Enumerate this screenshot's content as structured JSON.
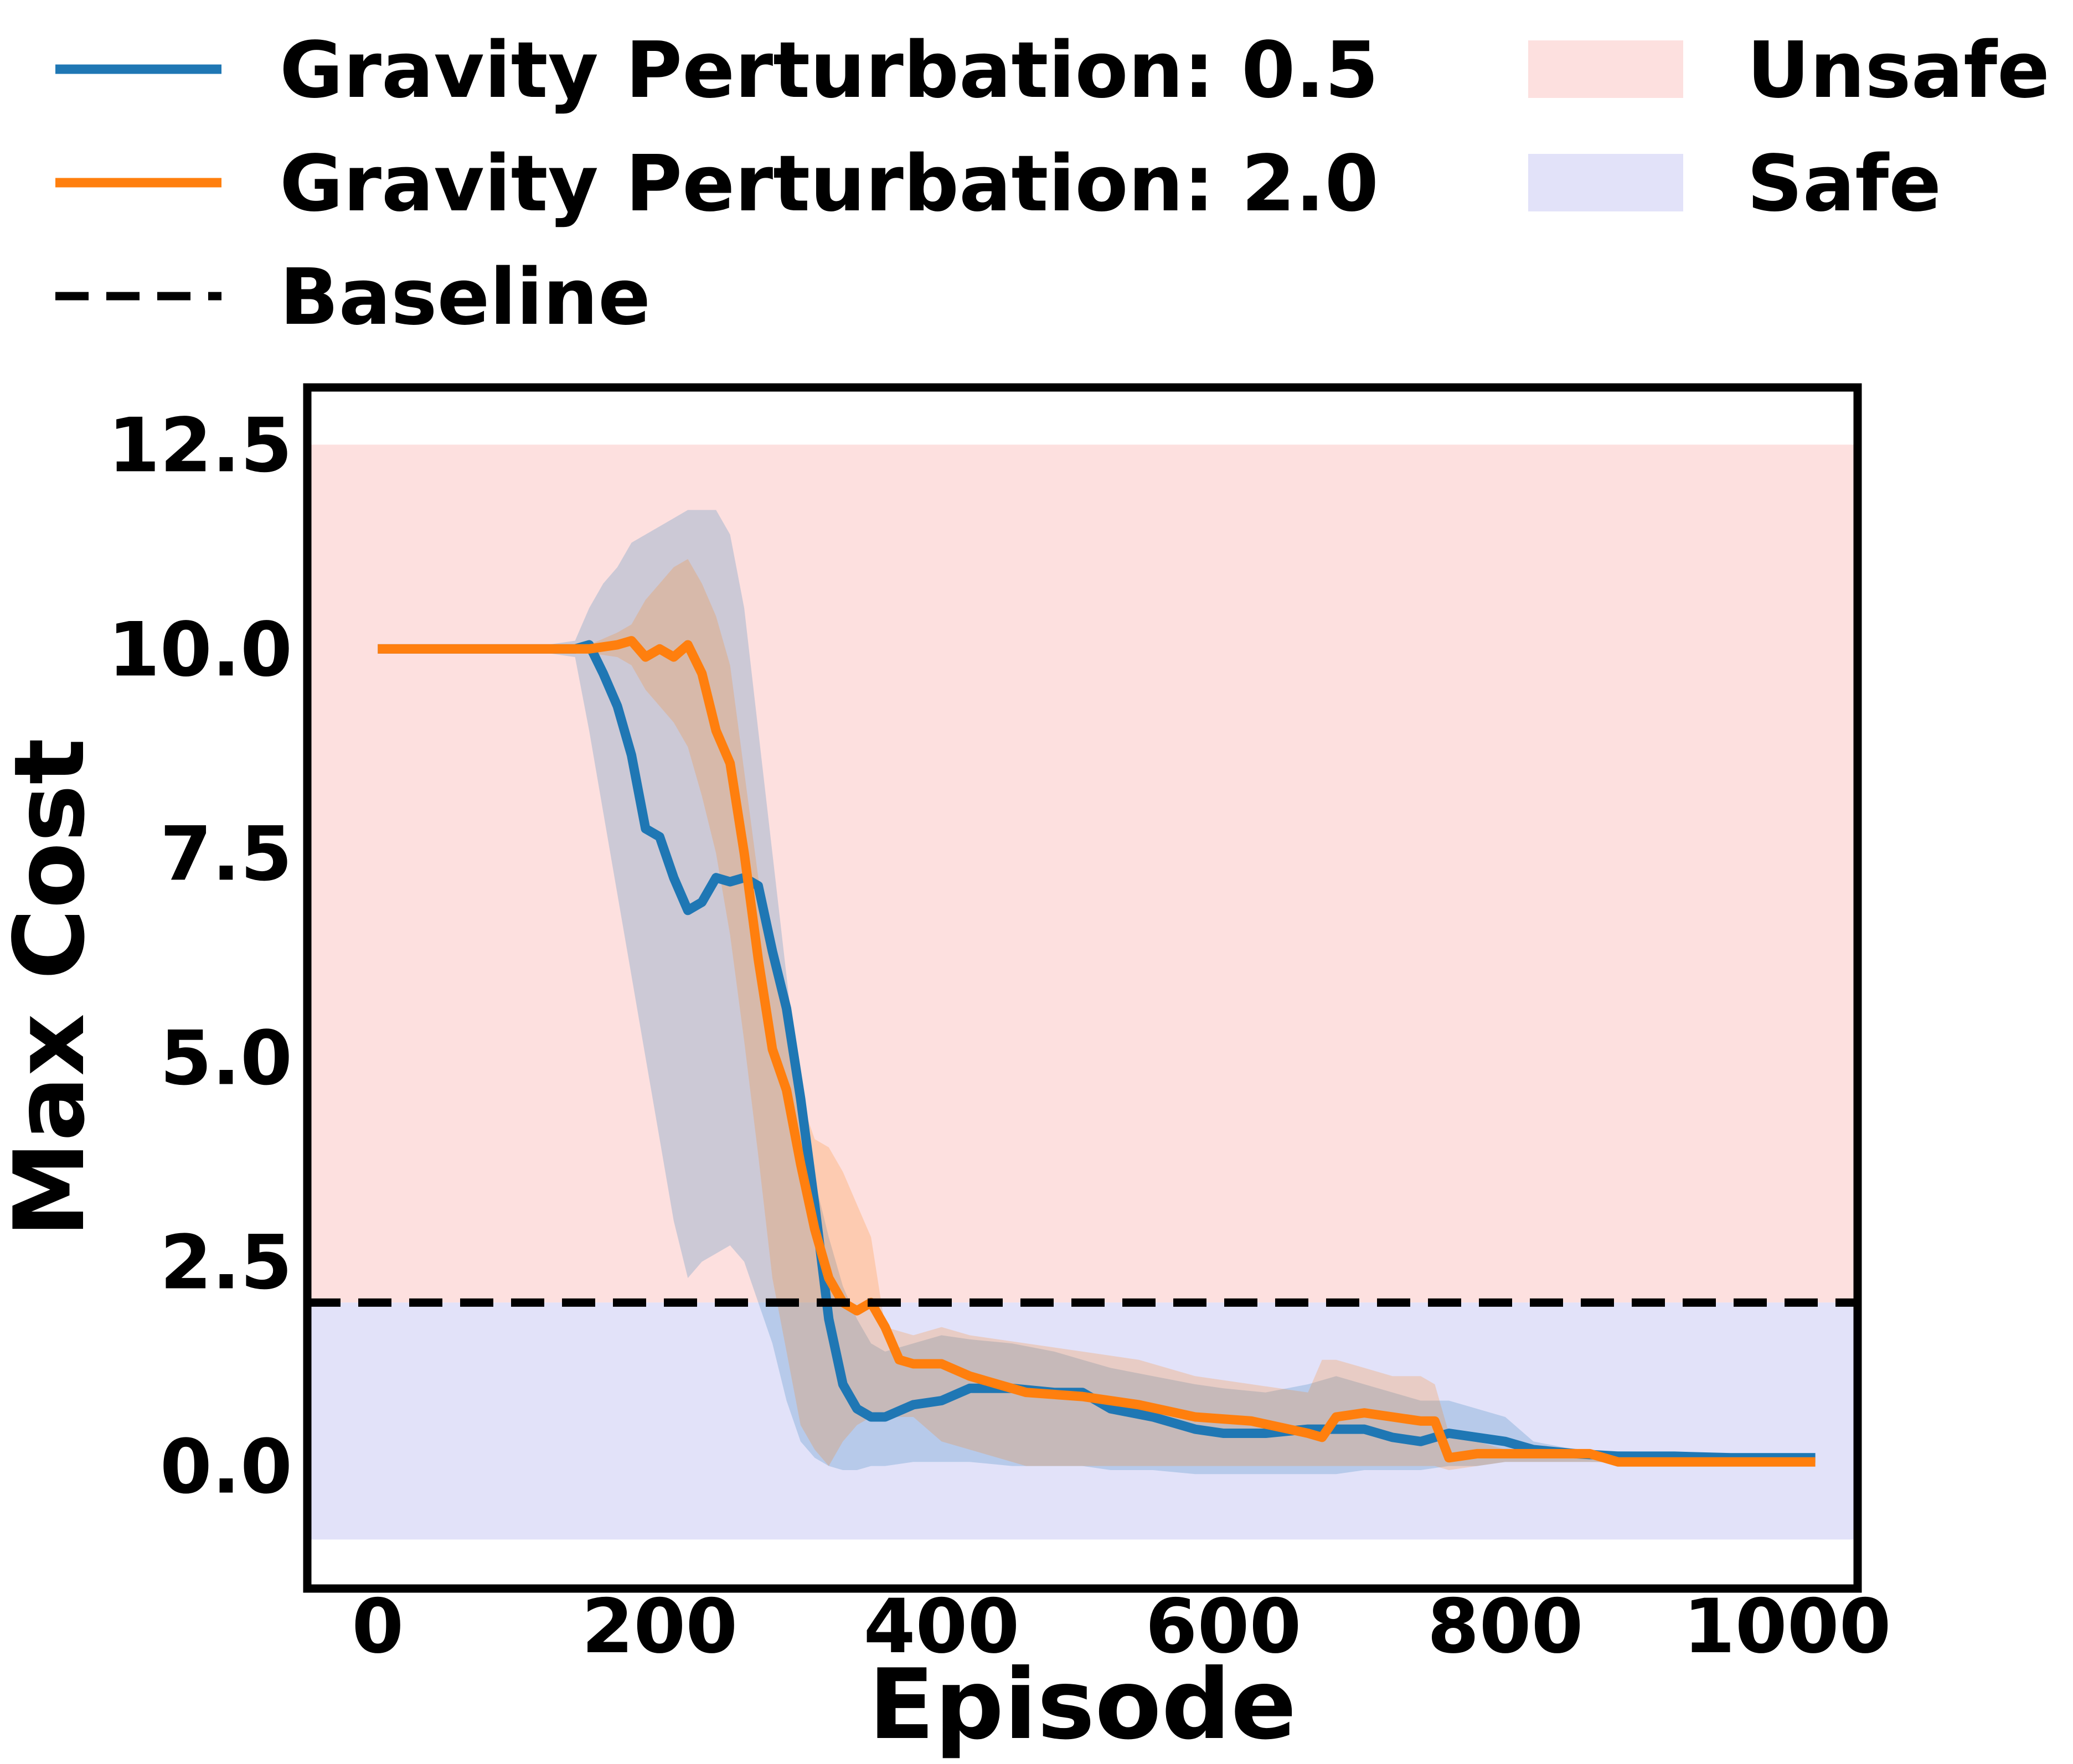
{
  "chart_data": {
    "type": "line",
    "title": "",
    "xlabel": "Episode",
    "ylabel": "Max Cost",
    "xlim": [
      -50,
      1050
    ],
    "ylim": [
      -1.5,
      13.2
    ],
    "xticks": [
      0,
      200,
      400,
      600,
      800,
      1000
    ],
    "xtick_labels": [
      "0",
      "200",
      "400",
      "600",
      "800",
      "1000"
    ],
    "yticks": [
      0.0,
      2.5,
      5.0,
      7.5,
      10.0,
      12.5
    ],
    "ytick_labels": [
      "0.0",
      "2.5",
      "5.0",
      "7.5",
      "10.0",
      "12.5"
    ],
    "grid": false,
    "legend_position": "above plot, two columns",
    "baseline": {
      "name": "Baseline",
      "value": 2.0,
      "color": "#000000",
      "style": "dashed"
    },
    "regions": [
      {
        "name": "Unsafe",
        "y_from": 2.0,
        "y_to": 12.5,
        "color": "#fde0df"
      },
      {
        "name": "Safe",
        "y_from": -0.9,
        "y_to": 2.0,
        "color": "#e2e2f9"
      }
    ],
    "series": [
      {
        "name": "Gravity Perturbation: 0.5",
        "color": "#1f77b4",
        "x": [
          0,
          50,
          100,
          140,
          150,
          160,
          170,
          180,
          190,
          200,
          210,
          220,
          230,
          240,
          250,
          260,
          270,
          280,
          290,
          300,
          310,
          320,
          330,
          340,
          350,
          360,
          380,
          400,
          420,
          450,
          480,
          500,
          520,
          550,
          580,
          600,
          630,
          660,
          680,
          700,
          720,
          740,
          760,
          780,
          800,
          820,
          850,
          880,
          920,
          960,
          1000,
          1020
        ],
        "y": [
          10,
          10,
          10,
          10,
          10.05,
          9.7,
          9.3,
          8.7,
          7.8,
          7.7,
          7.2,
          6.8,
          6.9,
          7.2,
          7.15,
          7.2,
          7.1,
          6.3,
          5.6,
          4.5,
          3.2,
          1.8,
          1.0,
          0.7,
          0.6,
          0.6,
          0.75,
          0.8,
          0.95,
          0.95,
          0.9,
          0.9,
          0.7,
          0.6,
          0.45,
          0.4,
          0.4,
          0.45,
          0.45,
          0.45,
          0.35,
          0.3,
          0.4,
          0.35,
          0.3,
          0.2,
          0.15,
          0.12,
          0.12,
          0.1,
          0.1,
          0.1
        ],
        "upper": [
          10,
          10,
          10,
          10.1,
          10.5,
          10.8,
          11.0,
          11.3,
          11.4,
          11.5,
          11.6,
          11.7,
          11.7,
          11.7,
          11.4,
          10.5,
          9.0,
          7.5,
          6.0,
          4.5,
          3.5,
          2.8,
          2.2,
          1.8,
          1.5,
          1.4,
          1.5,
          1.6,
          1.55,
          1.5,
          1.4,
          1.3,
          1.2,
          1.1,
          1.0,
          0.95,
          0.9,
          1.0,
          1.1,
          1.0,
          0.9,
          0.8,
          0.8,
          0.7,
          0.6,
          0.3,
          0.2,
          0.18,
          0.17,
          0.16,
          0.16,
          0.16
        ],
        "lower": [
          10,
          10,
          10,
          9.9,
          9.0,
          8.0,
          7.0,
          6.0,
          5.0,
          4.0,
          3.0,
          2.3,
          2.5,
          2.6,
          2.7,
          2.5,
          2.0,
          1.5,
          0.8,
          0.3,
          0.1,
          0.0,
          -0.05,
          -0.05,
          0.0,
          0.0,
          0.05,
          0.05,
          0.05,
          0.0,
          0.0,
          0.0,
          -0.05,
          -0.05,
          -0.1,
          -0.1,
          -0.1,
          -0.1,
          -0.1,
          -0.05,
          -0.05,
          -0.05,
          0.0,
          0.0,
          0.05,
          0.05,
          0.05,
          0.05,
          0.06,
          0.06,
          0.06,
          0.06
        ]
      },
      {
        "name": "Gravity Perturbation: 2.0",
        "color": "#ff7f0e",
        "x": [
          0,
          50,
          100,
          150,
          170,
          180,
          190,
          200,
          210,
          220,
          230,
          240,
          250,
          260,
          270,
          280,
          290,
          300,
          310,
          320,
          330,
          340,
          350,
          360,
          370,
          380,
          400,
          420,
          440,
          460,
          500,
          540,
          580,
          620,
          660,
          670,
          680,
          700,
          720,
          740,
          750,
          760,
          780,
          800,
          830,
          860,
          880,
          900,
          950,
          1000,
          1020
        ],
        "y": [
          10,
          10,
          10,
          10,
          10.05,
          10.1,
          9.9,
          10.0,
          9.9,
          10.05,
          9.7,
          9.0,
          8.6,
          7.5,
          6.2,
          5.1,
          4.6,
          3.7,
          2.9,
          2.3,
          2.0,
          1.9,
          2.0,
          1.7,
          1.3,
          1.25,
          1.25,
          1.1,
          1.0,
          0.9,
          0.85,
          0.75,
          0.6,
          0.55,
          0.4,
          0.35,
          0.6,
          0.65,
          0.6,
          0.55,
          0.55,
          0.1,
          0.15,
          0.15,
          0.15,
          0.15,
          0.05,
          0.05,
          0.05,
          0.05,
          0.05
        ],
        "upper": [
          10,
          10,
          10,
          10.05,
          10.2,
          10.3,
          10.6,
          10.8,
          11.0,
          11.1,
          10.8,
          10.4,
          9.8,
          8.5,
          7.2,
          6.4,
          5.5,
          4.5,
          4.0,
          3.9,
          3.6,
          3.2,
          2.8,
          1.7,
          1.65,
          1.6,
          1.7,
          1.6,
          1.55,
          1.5,
          1.4,
          1.3,
          1.1,
          1.0,
          0.9,
          1.3,
          1.3,
          1.2,
          1.1,
          1.1,
          1.0,
          0.4,
          0.3,
          0.2,
          0.16,
          0.16,
          0.06,
          0.06,
          0.06,
          0.06,
          0.06
        ],
        "lower": [
          10,
          10,
          10,
          9.95,
          9.9,
          9.8,
          9.5,
          9.3,
          9.1,
          8.8,
          8.2,
          7.5,
          6.5,
          5.2,
          3.8,
          2.3,
          1.4,
          0.5,
          0.2,
          0.0,
          0.3,
          0.5,
          0.6,
          0.6,
          0.6,
          0.6,
          0.3,
          0.2,
          0.1,
          0.0,
          0.0,
          0.0,
          0.0,
          0.0,
          0.0,
          0.0,
          0.0,
          0.0,
          0.0,
          0.0,
          0.0,
          -0.05,
          0.0,
          0.05,
          0.05,
          0.05,
          0.04,
          0.04,
          0.04,
          0.04,
          0.04
        ]
      }
    ]
  },
  "legend": {
    "items": [
      {
        "label": "Gravity Perturbation: 0.5",
        "kind": "line",
        "color": "#1f77b4"
      },
      {
        "label": "Gravity Perturbation: 2.0",
        "kind": "line",
        "color": "#ff7f0e"
      },
      {
        "label": "Baseline",
        "kind": "dashed",
        "color": "#000000"
      },
      {
        "label": "Unsafe",
        "kind": "patch",
        "color": "#fde0df"
      },
      {
        "label": "Safe",
        "kind": "patch",
        "color": "#e2e2f9"
      }
    ]
  }
}
